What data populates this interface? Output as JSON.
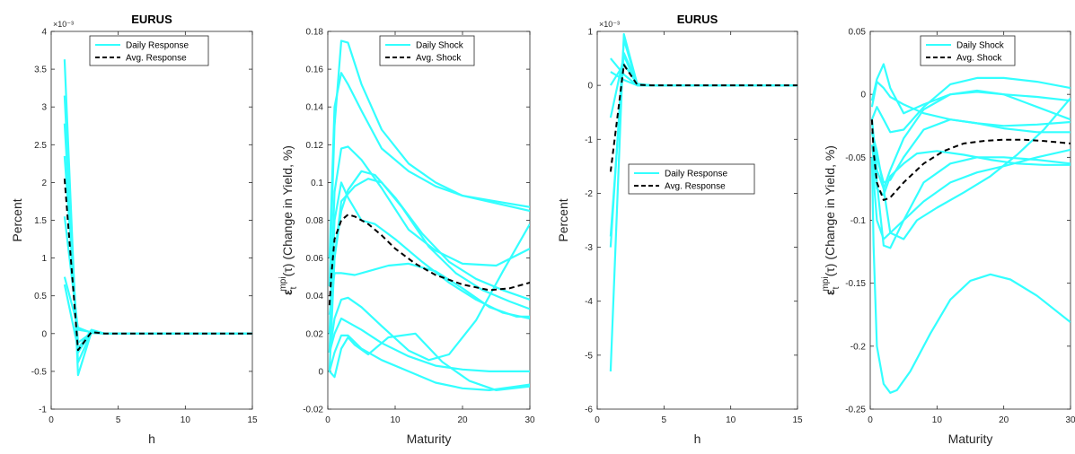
{
  "colors": {
    "daily": "#33ffff",
    "avg": "#000000",
    "axis": "#262626"
  },
  "chart_data": [
    {
      "type": "line",
      "title": "EURUS",
      "xlabel": "h",
      "ylabel": "Percent",
      "y_exponent": "×10⁻³",
      "xlim": [
        0,
        15
      ],
      "ylim": [
        -1,
        4
      ],
      "xticks": [
        "0",
        "5",
        "10",
        "15"
      ],
      "yticks": [
        "-1",
        "-0.5",
        "0",
        "0.5",
        "1",
        "1.5",
        "2",
        "2.5",
        "3",
        "3.5",
        "4"
      ],
      "legend": {
        "position": "top-center",
        "entries": [
          "Daily Response",
          "Avg. Response"
        ]
      },
      "series": [
        {
          "type": "daily",
          "x": [
            1,
            2,
            3,
            4,
            15
          ],
          "y": [
            3.63,
            -0.55,
            0.02,
            0,
            0
          ]
        },
        {
          "type": "daily",
          "x": [
            1,
            2,
            3,
            4,
            15
          ],
          "y": [
            3.15,
            -0.38,
            0.02,
            0,
            0
          ]
        },
        {
          "type": "daily",
          "x": [
            1,
            2,
            3,
            4,
            15
          ],
          "y": [
            2.78,
            -0.25,
            0.03,
            0,
            0
          ]
        },
        {
          "type": "daily",
          "x": [
            1,
            2,
            3,
            4,
            15
          ],
          "y": [
            2.35,
            -0.12,
            0.01,
            0,
            0
          ]
        },
        {
          "type": "daily",
          "x": [
            1,
            2,
            3,
            4,
            15
          ],
          "y": [
            1.55,
            0.05,
            0.02,
            0,
            0
          ]
        },
        {
          "type": "daily",
          "x": [
            1,
            2,
            3,
            4,
            15
          ],
          "y": [
            0.75,
            0.08,
            0.01,
            0,
            0
          ]
        },
        {
          "type": "daily",
          "x": [
            1,
            2,
            3,
            4,
            15
          ],
          "y": [
            0.65,
            -0.2,
            0.05,
            0,
            0
          ]
        },
        {
          "type": "avg",
          "x": [
            1,
            2,
            3,
            4,
            15
          ],
          "y": [
            2.05,
            -0.22,
            0.02,
            0,
            0
          ]
        }
      ]
    },
    {
      "type": "line",
      "title": "",
      "xlabel": "Maturity",
      "ylabel": "ε_t^mpi(τ) (Change in Yield, %)",
      "ylabel_parts": [
        "ε",
        "t",
        "mpi",
        "(τ) (Change in Yield, %)"
      ],
      "xlim": [
        0,
        30
      ],
      "ylim": [
        -0.02,
        0.18
      ],
      "xticks": [
        "0",
        "10",
        "20",
        "30"
      ],
      "yticks": [
        "-0.02",
        "0",
        "0.02",
        "0.04",
        "0.06",
        "0.08",
        "0.1",
        "0.12",
        "0.14",
        "0.16",
        "0.18"
      ],
      "legend": {
        "position": "top-right",
        "entries": [
          "Daily Shock",
          "Avg. Shock"
        ]
      },
      "series": [
        {
          "type": "daily",
          "x": [
            0.25,
            1,
            2,
            3,
            5,
            8,
            12,
            16,
            20,
            25,
            30
          ],
          "y": [
            0.045,
            0.13,
            0.175,
            0.174,
            0.152,
            0.128,
            0.11,
            0.1,
            0.093,
            0.089,
            0.085
          ]
        },
        {
          "type": "daily",
          "x": [
            0.25,
            1,
            2,
            3,
            5,
            8,
            12,
            16,
            20,
            25,
            30
          ],
          "y": [
            0.06,
            0.14,
            0.158,
            0.152,
            0.138,
            0.118,
            0.106,
            0.098,
            0.093,
            0.09,
            0.087
          ]
        },
        {
          "type": "daily",
          "x": [
            0.25,
            1,
            2,
            3,
            5,
            8,
            12,
            16,
            20,
            25,
            30
          ],
          "y": [
            0.02,
            0.095,
            0.118,
            0.119,
            0.112,
            0.097,
            0.075,
            0.064,
            0.057,
            0.056,
            0.065
          ]
        },
        {
          "type": "daily",
          "x": [
            0.25,
            1,
            2,
            3,
            5,
            7,
            10,
            14,
            18,
            22,
            26,
            30
          ],
          "y": [
            0.01,
            0.06,
            0.085,
            0.096,
            0.106,
            0.104,
            0.092,
            0.073,
            0.058,
            0.049,
            0.043,
            0.038
          ]
        },
        {
          "type": "daily",
          "x": [
            0.25,
            1,
            2,
            4,
            6,
            8,
            11,
            15,
            19,
            23,
            27,
            30
          ],
          "y": [
            0.0,
            0.06,
            0.09,
            0.098,
            0.102,
            0.1,
            0.087,
            0.066,
            0.052,
            0.043,
            0.037,
            0.033
          ]
        },
        {
          "type": "daily",
          "x": [
            0.25,
            1,
            2,
            3,
            5,
            7,
            10,
            14,
            18,
            22,
            26,
            30
          ],
          "y": [
            0.01,
            0.08,
            0.1,
            0.092,
            0.08,
            0.078,
            0.07,
            0.058,
            0.047,
            0.038,
            0.031,
            0.028
          ]
        },
        {
          "type": "daily",
          "x": [
            0.25,
            1,
            2,
            4,
            6,
            9,
            12,
            16,
            20,
            24,
            28,
            30
          ],
          "y": [
            0.03,
            0.052,
            0.052,
            0.051,
            0.053,
            0.056,
            0.057,
            0.053,
            0.044,
            0.034,
            0.029,
            0.029
          ]
        },
        {
          "type": "daily",
          "x": [
            0.25,
            1,
            2,
            3,
            5,
            8,
            12,
            15,
            18,
            22,
            26,
            30
          ],
          "y": [
            0.01,
            0.028,
            0.038,
            0.039,
            0.034,
            0.024,
            0.011,
            0.006,
            0.009,
            0.027,
            0.053,
            0.078
          ]
        },
        {
          "type": "daily",
          "x": [
            0.25,
            1,
            2,
            3,
            5,
            8,
            12,
            16,
            20,
            24,
            28,
            30
          ],
          "y": [
            0.01,
            0.02,
            0.028,
            0.026,
            0.022,
            0.015,
            0.008,
            0.003,
            0.001,
            0.0,
            0.0,
            0.0
          ]
        },
        {
          "type": "daily",
          "x": [
            0.25,
            1,
            2,
            3,
            4,
            6,
            9,
            13,
            17,
            21,
            25,
            30
          ],
          "y": [
            0.0,
            -0.003,
            0.012,
            0.018,
            0.014,
            0.009,
            0.018,
            0.02,
            0.005,
            -0.005,
            -0.01,
            -0.008
          ]
        },
        {
          "type": "daily",
          "x": [
            0.25,
            1,
            2,
            3,
            5,
            8,
            12,
            16,
            20,
            24,
            28,
            30
          ],
          "y": [
            0.0,
            0.01,
            0.019,
            0.019,
            0.012,
            0.006,
            0.0,
            -0.006,
            -0.009,
            -0.01,
            -0.008,
            -0.007
          ]
        },
        {
          "type": "avg",
          "x": [
            0.25,
            0.5,
            1,
            2,
            3,
            4,
            6,
            8,
            10,
            13,
            16,
            20,
            24,
            27,
            30
          ],
          "y": [
            0.035,
            0.05,
            0.07,
            0.08,
            0.083,
            0.082,
            0.078,
            0.072,
            0.065,
            0.057,
            0.051,
            0.046,
            0.043,
            0.044,
            0.047
          ]
        }
      ]
    },
    {
      "type": "line",
      "title": "EURUS",
      "xlabel": "h",
      "ylabel": "Percent",
      "y_exponent": "×10⁻³",
      "xlim": [
        0,
        15
      ],
      "ylim": [
        -6,
        1
      ],
      "xticks": [
        "0",
        "5",
        "10",
        "15"
      ],
      "yticks": [
        "-6",
        "-5",
        "-4",
        "-3",
        "-2",
        "-1",
        "0",
        "1"
      ],
      "legend": {
        "position": "center",
        "entries": [
          "Daily Response",
          "Avg. Response"
        ]
      },
      "series": [
        {
          "type": "daily",
          "x": [
            1,
            2,
            3,
            4,
            15
          ],
          "y": [
            -5.3,
            0.95,
            0.02,
            0,
            0
          ]
        },
        {
          "type": "daily",
          "x": [
            1,
            2,
            3,
            4,
            15
          ],
          "y": [
            -3.0,
            0.85,
            0.01,
            0,
            0
          ]
        },
        {
          "type": "daily",
          "x": [
            1,
            2,
            3,
            4,
            15
          ],
          "y": [
            -2.8,
            0.6,
            0.03,
            0,
            0
          ]
        },
        {
          "type": "daily",
          "x": [
            1,
            2,
            3,
            4,
            15
          ],
          "y": [
            -0.6,
            0.55,
            0.0,
            0,
            0
          ]
        },
        {
          "type": "daily",
          "x": [
            1,
            2,
            3,
            4,
            15
          ],
          "y": [
            0.0,
            0.4,
            0.02,
            0,
            0
          ]
        },
        {
          "type": "daily",
          "x": [
            1,
            2,
            3,
            4,
            15
          ],
          "y": [
            0.5,
            0.2,
            0.0,
            0,
            0
          ]
        },
        {
          "type": "daily",
          "x": [
            1,
            2,
            3,
            4,
            15
          ],
          "y": [
            0.25,
            0.1,
            0.0,
            0,
            0
          ]
        },
        {
          "type": "avg",
          "x": [
            1,
            2,
            3,
            4,
            15
          ],
          "y": [
            -1.6,
            0.38,
            0.01,
            0,
            0
          ]
        }
      ]
    },
    {
      "type": "line",
      "title": "",
      "xlabel": "Maturity",
      "ylabel": "ε_t^mpi(τ) (Change in Yield, %)",
      "ylabel_parts": [
        "ε",
        "t",
        "mpi",
        "(τ) (Change in Yield, %)"
      ],
      "xlim": [
        0,
        30
      ],
      "ylim": [
        -0.25,
        0.05
      ],
      "xticks": [
        "0",
        "10",
        "20",
        "30"
      ],
      "yticks": [
        "-0.25",
        "-0.2",
        "-0.15",
        "-0.1",
        "-0.05",
        "0",
        "0.05"
      ],
      "legend": {
        "position": "top-right",
        "entries": [
          "Daily Shock",
          "Avg. Shock"
        ]
      },
      "series": [
        {
          "type": "daily",
          "x": [
            0.25,
            1,
            2,
            3,
            5,
            8,
            12,
            16,
            20,
            25,
            30
          ],
          "y": [
            -0.005,
            0.012,
            0.024,
            0.005,
            -0.015,
            -0.008,
            0.0,
            0.002,
            0.0,
            -0.002,
            -0.005
          ]
        },
        {
          "type": "daily",
          "x": [
            0.25,
            1,
            2,
            3,
            5,
            8,
            12,
            16,
            20,
            25,
            30
          ],
          "y": [
            -0.01,
            0.01,
            0.005,
            -0.002,
            -0.008,
            -0.015,
            -0.02,
            -0.023,
            -0.025,
            -0.024,
            -0.022
          ]
        },
        {
          "type": "daily",
          "x": [
            0.25,
            1,
            2,
            3,
            5,
            8,
            12,
            16,
            20,
            25,
            30
          ],
          "y": [
            -0.02,
            -0.01,
            -0.02,
            -0.03,
            -0.028,
            -0.01,
            0.008,
            0.013,
            0.013,
            0.01,
            0.005
          ]
        },
        {
          "type": "daily",
          "x": [
            0.25,
            1,
            2,
            3,
            5,
            8,
            12,
            16,
            20,
            25,
            30
          ],
          "y": [
            -0.03,
            -0.045,
            -0.075,
            -0.06,
            -0.035,
            -0.012,
            0.0,
            0.003,
            0.0,
            -0.01,
            -0.02
          ]
        },
        {
          "type": "daily",
          "x": [
            0.25,
            1,
            2,
            3,
            5,
            8,
            12,
            16,
            20,
            25,
            30
          ],
          "y": [
            -0.03,
            -0.05,
            -0.07,
            -0.068,
            -0.05,
            -0.028,
            -0.02,
            -0.023,
            -0.027,
            -0.03,
            -0.03
          ]
        },
        {
          "type": "daily",
          "x": [
            0.25,
            1,
            2,
            3,
            5,
            8,
            12,
            16,
            20,
            25,
            30
          ],
          "y": [
            -0.02,
            -0.07,
            -0.12,
            -0.122,
            -0.1,
            -0.07,
            -0.055,
            -0.05,
            -0.05,
            -0.052,
            -0.055
          ]
        },
        {
          "type": "daily",
          "x": [
            0.25,
            1,
            2,
            3,
            5,
            7,
            10,
            14,
            18,
            22,
            26,
            30
          ],
          "y": [
            -0.02,
            -0.06,
            -0.075,
            -0.11,
            -0.115,
            -0.1,
            -0.09,
            -0.078,
            -0.065,
            -0.048,
            -0.028,
            -0.003
          ]
        },
        {
          "type": "daily",
          "x": [
            0.25,
            1,
            2,
            3,
            5,
            7,
            10,
            14,
            18,
            22,
            26,
            30
          ],
          "y": [
            -0.04,
            -0.075,
            -0.08,
            -0.065,
            -0.055,
            -0.047,
            -0.045,
            -0.048,
            -0.052,
            -0.055,
            -0.056,
            -0.056
          ]
        },
        {
          "type": "daily",
          "x": [
            0.25,
            1,
            2,
            3,
            5,
            8,
            12,
            16,
            20,
            25,
            30
          ],
          "y": [
            -0.05,
            -0.1,
            -0.115,
            -0.11,
            -0.1,
            -0.085,
            -0.07,
            -0.062,
            -0.057,
            -0.05,
            -0.044
          ]
        },
        {
          "type": "daily",
          "x": [
            0.25,
            0.5,
            1,
            2,
            3,
            4,
            6,
            9,
            12,
            15,
            18,
            21,
            25,
            30
          ],
          "y": [
            -0.05,
            -0.12,
            -0.2,
            -0.23,
            -0.237,
            -0.235,
            -0.22,
            -0.19,
            -0.163,
            -0.148,
            -0.143,
            -0.147,
            -0.16,
            -0.181
          ]
        },
        {
          "type": "avg",
          "x": [
            0.25,
            0.5,
            1,
            2,
            3,
            5,
            8,
            11,
            14,
            17,
            20,
            23,
            26,
            30
          ],
          "y": [
            -0.02,
            -0.045,
            -0.07,
            -0.084,
            -0.082,
            -0.07,
            -0.055,
            -0.045,
            -0.039,
            -0.037,
            -0.036,
            -0.036,
            -0.037,
            -0.039
          ]
        }
      ]
    }
  ]
}
